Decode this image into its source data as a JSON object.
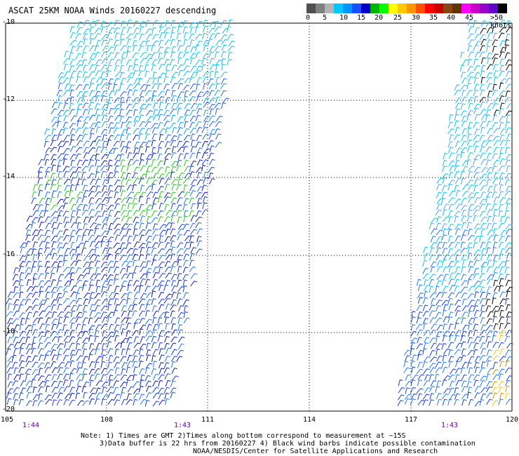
{
  "title": "ASCAT 25KM NOAA Winds 20160227 descending",
  "colorbar": {
    "colors": [
      "#505050",
      "#808080",
      "#b4b4b4",
      "#00c8ff",
      "#0096ff",
      "#1450ff",
      "#0000c8",
      "#00b400",
      "#00ff00",
      "#ffff00",
      "#ffc800",
      "#ff9600",
      "#ff5000",
      "#ff0000",
      "#c80000",
      "#8b4513",
      "#643200",
      "#ff00ff",
      "#c800c8",
      "#9600c8",
      "#6400c8",
      "#000000"
    ],
    "labels": [
      "0",
      "5",
      "10",
      "15",
      "20",
      "25",
      "30",
      "35",
      "40",
      "45",
      ">50 knots"
    ]
  },
  "axes": {
    "lat_labels": [
      "-10",
      "-12",
      "-14",
      "-16",
      "-18",
      "-20"
    ],
    "lon_labels": [
      "105",
      "108",
      "111",
      "114",
      "117",
      "120"
    ]
  },
  "times": [
    "1:44",
    "1:43",
    "1:43"
  ],
  "notes": [
    "Note: 1) Times are GMT 2)Times along bottom correspond to measurement at ~15S",
    "3)Data buffer is 22 hrs from 20160227 4) Black wind barbs indicate possible contamination",
    "NOAA/NESDIS/Center for Satellite Applications and Research"
  ]
}
